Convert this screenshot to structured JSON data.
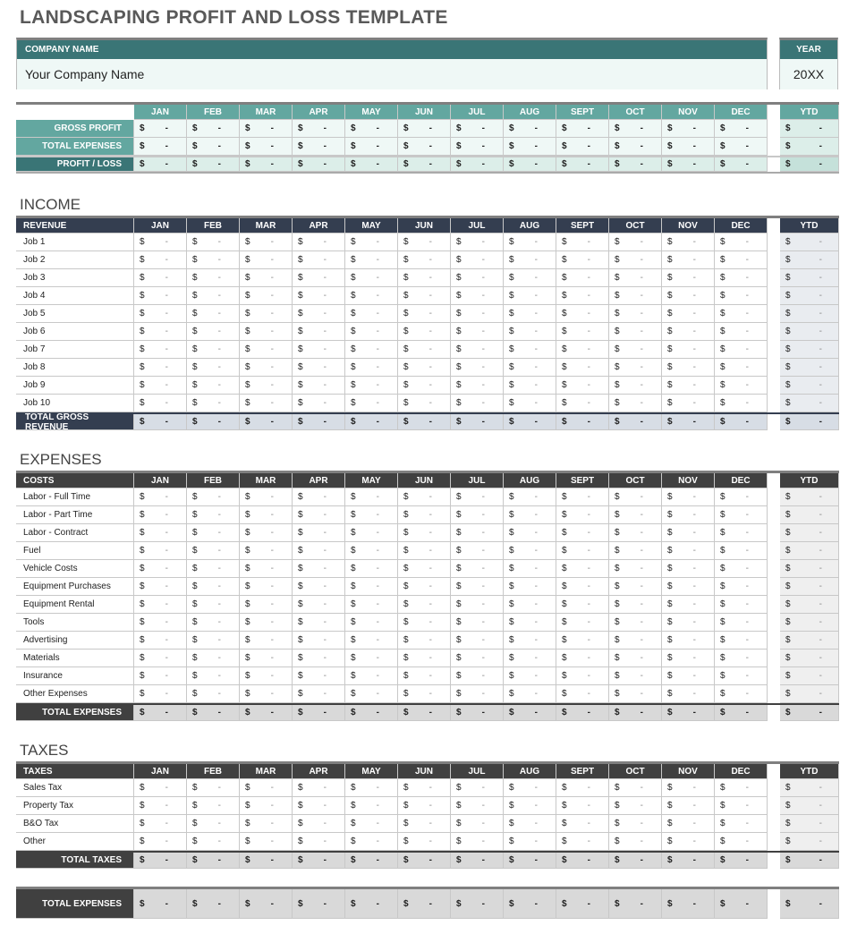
{
  "title": "LANDSCAPING PROFIT AND LOSS TEMPLATE",
  "company": {
    "label": "COMPANY NAME",
    "value": "Your Company Name"
  },
  "year": {
    "label": "YEAR",
    "value": "20XX"
  },
  "months": [
    "JAN",
    "FEB",
    "MAR",
    "APR",
    "MAY",
    "JUN",
    "JUL",
    "AUG",
    "SEPT",
    "OCT",
    "NOV",
    "DEC"
  ],
  "ytd_label": "YTD",
  "cell": {
    "currency": "$",
    "value": "-"
  },
  "colors": {
    "teal_dark": "#3a7576",
    "teal": "#63a7a0",
    "navy": "#343e50",
    "charcoal": "#404040"
  },
  "summary": {
    "rows": [
      "GROSS PROFIT",
      "TOTAL EXPENSES",
      "PROFIT / LOSS"
    ]
  },
  "income": {
    "title": "INCOME",
    "header": "REVENUE",
    "rows": [
      "Job 1",
      "Job 2",
      "Job 3",
      "Job 4",
      "Job 5",
      "Job 6",
      "Job 7",
      "Job 8",
      "Job 9",
      "Job 10"
    ],
    "total": "TOTAL GROSS REVENUE"
  },
  "expenses": {
    "title": "EXPENSES",
    "header": "COSTS",
    "rows": [
      " Labor - Full Time",
      "Labor - Part Time",
      "Labor - Contract",
      "Fuel",
      "Vehicle Costs",
      "Equipment Purchases",
      "Equipment Rental",
      "Tools",
      "Advertising",
      "Materials",
      "Insurance",
      "Other Expenses"
    ],
    "total": "TOTAL EXPENSES"
  },
  "taxes": {
    "title": "TAXES",
    "header": "TAXES",
    "rows": [
      "Sales Tax",
      "Property Tax",
      "B&O Tax",
      "Other"
    ],
    "total": "TOTAL TAXES"
  },
  "grand_total": {
    "label": "TOTAL EXPENSES"
  }
}
